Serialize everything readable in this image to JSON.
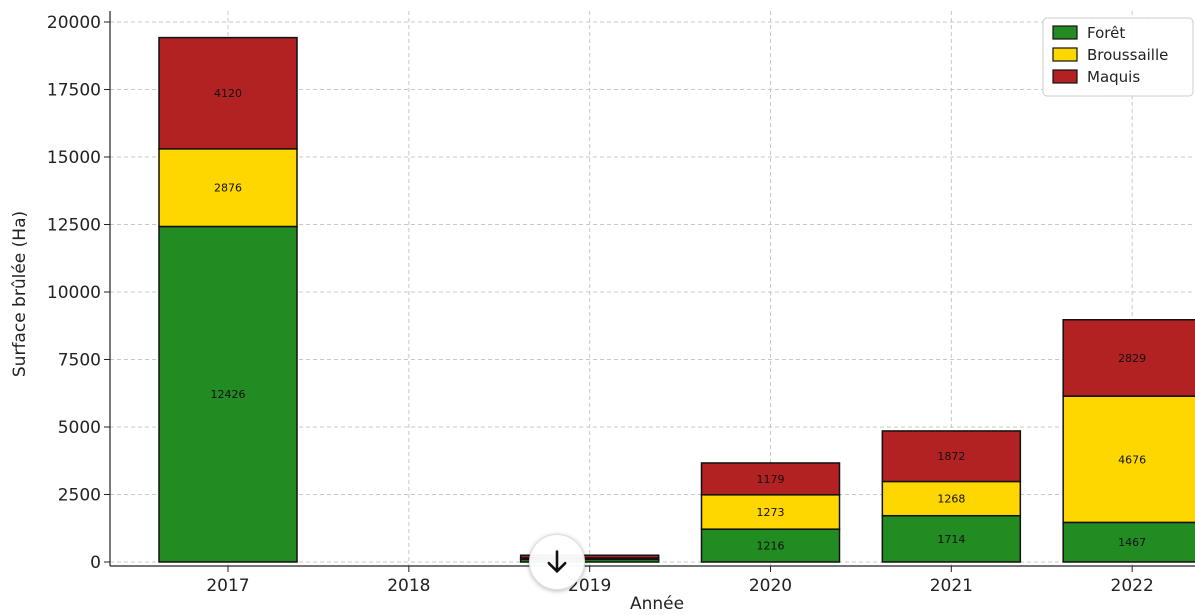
{
  "chart_data": {
    "type": "bar",
    "stacked": true,
    "title": "",
    "xlabel": "Année",
    "ylabel": "Surface brûlée (Ha)",
    "categories": [
      "2017",
      "2018",
      "2019",
      "2020",
      "2021",
      "2022"
    ],
    "series": [
      {
        "name": "Forêt",
        "color": "#228b22",
        "values": [
          12426,
          0,
          100,
          1216,
          1714,
          1467
        ]
      },
      {
        "name": "Broussaille",
        "color": "#ffd700",
        "values": [
          2876,
          0,
          50,
          1273,
          1268,
          4676
        ]
      },
      {
        "name": "Maquis",
        "color": "#b22222",
        "values": [
          4120,
          0,
          100,
          1179,
          1872,
          2829
        ]
      }
    ],
    "ylim": [
      0,
      20000
    ],
    "yticks": [
      0,
      2500,
      5000,
      7500,
      10000,
      12500,
      15000,
      17500,
      20000
    ],
    "grid": true,
    "legend_position": "top-right",
    "show_value_labels": true
  },
  "overlay": {
    "scroll_button_icon": "arrow-down-icon"
  }
}
